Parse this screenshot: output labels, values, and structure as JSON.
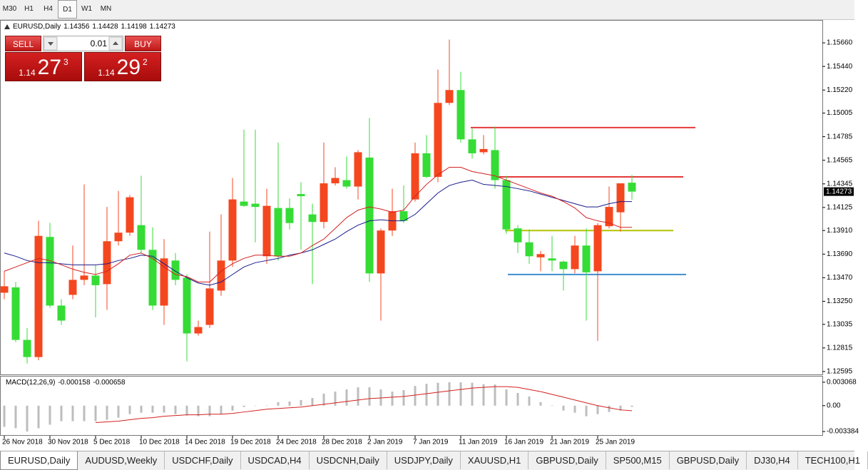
{
  "toolbar": {
    "timeframes": [
      "M30",
      "H1",
      "H4",
      "D1",
      "W1",
      "MN"
    ],
    "active": 3
  },
  "trade_panel": {
    "sell": "SELL",
    "buy": "BUY",
    "lot": "0.01",
    "sell_price": {
      "big_figure": "1.14",
      "pips": "27",
      "fraction": "3"
    },
    "buy_price": {
      "big_figure": "1.14",
      "pips": "29",
      "fraction": "2"
    }
  },
  "tabs": [
    "EURUSD,Daily",
    "AUDUSD,Weekly",
    "USDCHF,Daily",
    "USDCAD,H4",
    "USDCNH,Daily",
    "USDJPY,Daily",
    "XAUUSD,H1",
    "GBPUSD,Daily",
    "SP500,M15",
    "GBPUSD,Daily",
    "DJ30,H4",
    "TECH100,H1"
  ],
  "active_tab": 0,
  "chart_data": {
    "type": "candlestick",
    "title": "EURUSD,Daily",
    "categories": [
      "26 Nov 2018",
      null,
      null,
      null,
      "30 Nov 2018",
      null,
      null,
      null,
      "5 Dec 2018",
      null,
      null,
      null,
      "10 Dec 2018",
      null,
      null,
      null,
      "14 Dec 2018",
      null,
      null,
      null,
      "19 Dec 2018",
      null,
      null,
      null,
      "24 Dec 2018",
      null,
      null,
      null,
      "28 Dec 2018",
      null,
      null,
      null,
      "2 Jan 2019",
      null,
      null,
      null,
      "7 Jan 2019",
      null,
      null,
      null,
      "11 Jan 2019",
      null,
      null,
      null,
      "16 Jan 2019",
      null,
      null,
      null,
      "21 Jan 2019",
      null,
      null,
      null,
      "25 Jan 2019",
      null,
      null,
      null
    ],
    "open": [
      1.1333,
      1.1338,
      1.1289,
      1.1273,
      1.1385,
      1.1321,
      1.1331,
      1.1345,
      1.1349,
      1.1341,
      1.1381,
      1.1389,
      1.1396,
      1.1373,
      1.1321,
      1.1363,
      1.1347,
      1.1295,
      1.1303,
      1.1335,
      1.1363,
      1.1418,
      1.1416,
      1.1367,
      1.1412,
      1.1412,
      1.1425,
      1.1406,
      1.1399,
      1.1435,
      1.1438,
      1.1432,
      1.1459,
      1.1351,
      1.1391,
      1.1409,
      1.142,
      1.1463,
      1.1441,
      1.151,
      1.1522,
      1.1476,
      1.1464,
      1.1466,
      1.1438,
      1.1393,
      1.138,
      1.1366,
      1.1365,
      1.1362,
      1.1355,
      1.1377,
      1.1353,
      1.1395,
      1.1408,
      1.14356
    ],
    "high": [
      1.1353,
      1.1343,
      1.13,
      1.14,
      1.1398,
      1.1327,
      1.1377,
      1.1434,
      1.1359,
      1.1413,
      1.1428,
      1.1424,
      1.1442,
      1.1394,
      1.1383,
      1.137,
      1.135,
      1.1307,
      1.139,
      1.1406,
      1.144,
      1.1485,
      1.1485,
      1.143,
      1.1473,
      1.1421,
      1.1436,
      1.1416,
      1.1473,
      1.145,
      1.146,
      1.1466,
      1.1496,
      1.1393,
      1.143,
      1.1433,
      1.1473,
      1.148,
      1.1541,
      1.1569,
      1.1539,
      1.1486,
      1.148,
      1.1488,
      1.1442,
      1.1396,
      1.1392,
      1.1372,
      1.1386,
      1.1363,
      1.1386,
      1.1393,
      1.1398,
      1.1432,
      1.1435,
      1.14428
    ],
    "low": [
      1.1327,
      1.1287,
      1.1267,
      1.127,
      1.1319,
      1.1303,
      1.1327,
      1.134,
      1.131,
      1.1317,
      1.1377,
      1.1386,
      1.137,
      1.1317,
      1.1303,
      1.134,
      1.1269,
      1.1293,
      1.13,
      1.133,
      1.1357,
      1.1413,
      1.138,
      1.136,
      1.1363,
      1.1392,
      1.1373,
      1.1341,
      1.1393,
      1.1433,
      1.143,
      1.142,
      1.1343,
      1.1307,
      1.1386,
      1.1398,
      1.1418,
      1.144,
      1.1436,
      1.1508,
      1.1473,
      1.1458,
      1.1462,
      1.143,
      1.1388,
      1.137,
      1.136,
      1.1353,
      1.1353,
      1.1335,
      1.1351,
      1.1307,
      1.1288,
      1.1393,
      1.139,
      1.14198
    ],
    "close": [
      1.1339,
      1.1289,
      1.1273,
      1.1386,
      1.1321,
      1.1307,
      1.1345,
      1.1349,
      1.134,
      1.1381,
      1.1389,
      1.1422,
      1.1373,
      1.1321,
      1.1365,
      1.1345,
      1.1295,
      1.1301,
      1.1337,
      1.1363,
      1.142,
      1.1414,
      1.1413,
      1.1414,
      1.1367,
      1.1398,
      1.1423,
      1.1399,
      1.1435,
      1.144,
      1.1432,
      1.1464,
      1.1351,
      1.1391,
      1.1409,
      1.14,
      1.1463,
      1.1441,
      1.151,
      1.1522,
      1.1476,
      1.1463,
      1.1467,
      1.1438,
      1.1392,
      1.138,
      1.1367,
      1.1369,
      1.1363,
      1.1355,
      1.1377,
      1.1352,
      1.1396,
      1.1413,
      1.1435,
      1.14273
    ],
    "up_color": "#f4471f",
    "down_color": "#35dc35",
    "overlays": [
      {
        "color": "#1a1a8c",
        "values": [
          1.137,
          1.1367,
          1.1363,
          1.1361,
          1.1361,
          1.136,
          1.1359,
          1.1359,
          1.1359,
          1.136,
          1.1363,
          1.1365,
          1.1368,
          1.1367,
          1.136,
          1.1353,
          1.1347,
          1.1342,
          1.134,
          1.1343,
          1.135,
          1.1357,
          1.1361,
          1.1363,
          1.1365,
          1.1368,
          1.137,
          1.1373,
          1.1378,
          1.1383,
          1.139,
          1.1396,
          1.14,
          1.1401,
          1.14,
          1.14,
          1.1406,
          1.1416,
          1.1426,
          1.1433,
          1.1436,
          1.1438,
          1.1434,
          1.1433,
          1.1432,
          1.143,
          1.1428,
          1.1425,
          1.1422,
          1.1419,
          1.1416,
          1.1413,
          1.1413,
          1.1416,
          1.1418,
          1.1418
        ]
      },
      {
        "color": "#d42020",
        "values": [
          1.1353,
          1.1357,
          1.1361,
          1.1365,
          1.1363,
          1.1359,
          1.1355,
          1.1352,
          1.135,
          1.1353,
          1.136,
          1.1368,
          1.137,
          1.1365,
          1.1357,
          1.135,
          1.1348,
          1.1343,
          1.1343,
          1.1353,
          1.136,
          1.1365,
          1.1368,
          1.1368,
          1.1367,
          1.1367,
          1.137,
          1.1377,
          1.1383,
          1.1393,
          1.1403,
          1.141,
          1.1413,
          1.1411,
          1.1408,
          1.141,
          1.1423,
          1.1434,
          1.1443,
          1.145,
          1.145,
          1.1446,
          1.1444,
          1.1442,
          1.1438,
          1.1434,
          1.143,
          1.1426,
          1.1423,
          1.1418,
          1.1412,
          1.1403,
          1.14,
          1.1398,
          1.1394,
          1.1394
        ]
      }
    ],
    "levels": [
      {
        "value": 1.1487,
        "color": "#e53a3a"
      },
      {
        "value": 1.1441,
        "color": "#e53a3a"
      },
      {
        "value": 1.1391,
        "color": "#b4c400"
      },
      {
        "value": 1.135,
        "color": "#3d8fd1"
      }
    ],
    "ylim": [
      1.12568,
      1.1586
    ],
    "yticks": [
      {
        "value": 1.1566,
        "label": "1.15660"
      },
      {
        "value": 1.1544,
        "label": "1.15440"
      },
      {
        "value": 1.1522,
        "label": "1.15220"
      },
      1.15005,
      1.14785,
      1.14565,
      1.14345,
      1.14125,
      {
        "value": 1.1391,
        "label": "1.13910"
      },
      {
        "value": 1.1369,
        "label": "1.13690"
      },
      {
        "value": 1.1347,
        "label": "1.13470"
      },
      {
        "value": 1.1325,
        "label": "1.13250"
      },
      1.13035,
      1.12815,
      1.12595
    ],
    "macd": {
      "title": "MACD(12,26,9)",
      "histogram_color": "#bdbdbd",
      "signal_color": "#d42020",
      "histogram": [
        -0.00277,
        -0.00295,
        -0.003384,
        -0.00295,
        -0.00249,
        -0.00203,
        -0.00203,
        -0.00203,
        -0.00203,
        -0.00184,
        -0.00157,
        -0.00111,
        -0.00092,
        -0.00092,
        -0.00092,
        -0.00111,
        -0.00129,
        -0.00138,
        -0.00138,
        -0.00111,
        -0.00065,
        -0.00018,
        -3e-05,
        2e-05,
        0.00046,
        0.00055,
        0.00074,
        0.00101,
        0.00157,
        0.00184,
        0.00212,
        0.0024,
        0.0024,
        0.00212,
        0.00184,
        0.00203,
        0.00258,
        0.00286,
        0.003,
        0.003068,
        0.00305,
        0.003,
        0.0028,
        0.00277,
        0.00212,
        0.00166,
        0.0012,
        0.00046,
        5e-05,
        -0.00065,
        -0.00092,
        -0.00138,
        -0.00111,
        -0.00083,
        -0.00065,
        -0.000158
      ],
      "signal": [
        null,
        null,
        null,
        null,
        null,
        null,
        null,
        null,
        -0.00221,
        -0.00212,
        -0.00203,
        -0.00184,
        -0.00166,
        -0.00157,
        -0.00138,
        -0.00129,
        -0.0012,
        -0.0012,
        -0.00111,
        -0.00111,
        -0.00101,
        -0.00083,
        -0.00065,
        -0.00046,
        -0.00037,
        -0.00028,
        -0.00018,
        0,
        0.00018,
        0.00037,
        0.00055,
        0.00074,
        0.00092,
        0.00101,
        0.00111,
        0.0012,
        0.00138,
        0.00157,
        0.00175,
        0.00194,
        0.00212,
        0.0023,
        0.0024,
        0.00249,
        0.00249,
        0.0024,
        0.00212,
        0.00184,
        0.00147,
        0.00111,
        0.00074,
        0.00037,
        0,
        -0.00028,
        -0.00055,
        -0.000658
      ],
      "ylim": [
        -0.003845,
        0.003713
      ],
      "yticks": [
        0.003068,
        {
          "value": 0,
          "label": "0.00"
        },
        -0.003384
      ]
    }
  }
}
